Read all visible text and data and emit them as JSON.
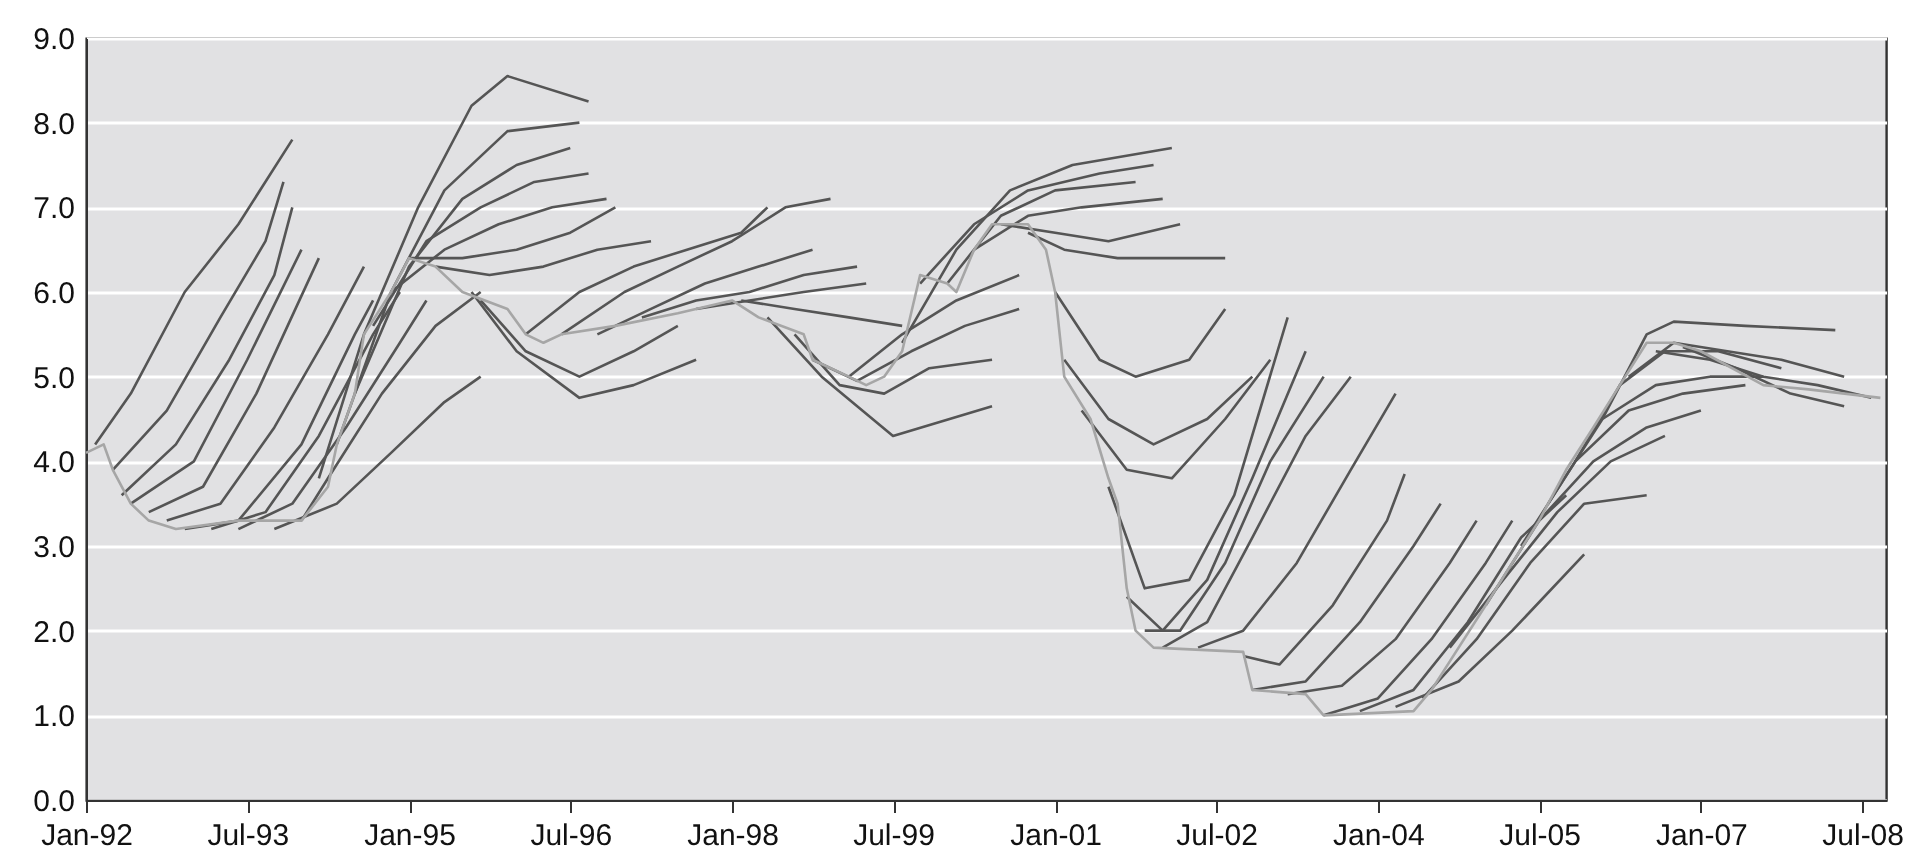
{
  "chart_data": {
    "type": "line",
    "xlim": [
      "1992-01",
      "2008-09-20"
    ],
    "xticks": [
      {
        "value": "1992-01",
        "label": "Jan-92"
      },
      {
        "value": "1993-07",
        "label": "Jul-93"
      },
      {
        "value": "1995-01",
        "label": "Jan-95"
      },
      {
        "value": "1996-07",
        "label": "Jul-96"
      },
      {
        "value": "1998-01",
        "label": "Jan-98"
      },
      {
        "value": "1999-07",
        "label": "Jul-99"
      },
      {
        "value": "2001-01",
        "label": "Jan-01"
      },
      {
        "value": "2002-07",
        "label": "Jul-02"
      },
      {
        "value": "2004-01",
        "label": "Jan-04"
      },
      {
        "value": "2005-07",
        "label": "Jul-05"
      },
      {
        "value": "2007-01",
        "label": "Jan-07"
      },
      {
        "value": "2008-07",
        "label": "Jul-08"
      }
    ],
    "ylim": [
      0,
      9
    ],
    "yticks": [
      {
        "value": 0,
        "label": "0.0"
      },
      {
        "value": 1,
        "label": "1.0"
      },
      {
        "value": 2,
        "label": "2.0"
      },
      {
        "value": 3,
        "label": "3.0"
      },
      {
        "value": 4,
        "label": "4.0"
      },
      {
        "value": 5,
        "label": "5.0"
      },
      {
        "value": 6,
        "label": "6.0"
      },
      {
        "value": 7,
        "label": "7.0"
      },
      {
        "value": 8,
        "label": "8.0"
      },
      {
        "value": 9,
        "label": "9.0"
      }
    ],
    "grid": "y",
    "series": [
      {
        "color": "#555555",
        "x": [
          "1992-02",
          "1992-06",
          "1992-12",
          "1993-06",
          "1993-12"
        ],
        "values": [
          4.2,
          4.8,
          6.0,
          6.8,
          7.8
        ]
      },
      {
        "color": "#555555",
        "x": [
          "1992-04",
          "1992-10",
          "1993-04",
          "1993-09",
          "1993-11"
        ],
        "values": [
          3.9,
          4.6,
          5.7,
          6.6,
          7.3
        ]
      },
      {
        "color": "#555555",
        "x": [
          "1992-05",
          "1992-11",
          "1993-05",
          "1993-10",
          "1993-12"
        ],
        "values": [
          3.6,
          4.2,
          5.2,
          6.2,
          7.0
        ]
      },
      {
        "color": "#555555",
        "x": [
          "1992-06",
          "1993-01",
          "1993-07",
          "1994-01"
        ],
        "values": [
          3.5,
          4.0,
          5.2,
          6.5
        ]
      },
      {
        "color": "#555555",
        "x": [
          "1992-08",
          "1993-02",
          "1993-08",
          "1994-03"
        ],
        "values": [
          3.4,
          3.7,
          4.8,
          6.4
        ]
      },
      {
        "color": "#555555",
        "x": [
          "1992-10",
          "1993-04",
          "1993-10",
          "1994-04",
          "1994-08"
        ],
        "values": [
          3.3,
          3.5,
          4.4,
          5.5,
          6.3
        ]
      },
      {
        "color": "#555555",
        "x": [
          "1992-12",
          "1993-06",
          "1994-01",
          "1994-07",
          "1994-09"
        ],
        "values": [
          3.2,
          3.3,
          4.2,
          5.5,
          5.9
        ]
      },
      {
        "color": "#555555",
        "x": [
          "1993-03",
          "1993-09",
          "1994-03",
          "1994-09",
          "1994-12"
        ],
        "values": [
          3.2,
          3.4,
          4.3,
          5.5,
          6.0
        ]
      },
      {
        "color": "#555555",
        "x": [
          "1993-06",
          "1993-12",
          "1994-06",
          "1994-12",
          "1995-03"
        ],
        "values": [
          3.2,
          3.5,
          4.4,
          5.4,
          5.9
        ]
      },
      {
        "color": "#555555",
        "x": [
          "1993-10",
          "1994-05",
          "1994-11",
          "1995-05",
          "1995-09"
        ],
        "values": [
          3.2,
          3.5,
          4.1,
          4.7,
          5.0
        ]
      },
      {
        "color": "#555555",
        "x": [
          "1994-01",
          "1994-04",
          "1994-10",
          "1995-04",
          "1995-09"
        ],
        "values": [
          3.3,
          3.8,
          4.8,
          5.6,
          6.0
        ]
      },
      {
        "color": "#555555",
        "x": [
          "1994-03",
          "1994-08",
          "1995-02",
          "1995-08",
          "1995-12",
          "1996-09"
        ],
        "values": [
          3.8,
          5.5,
          7.0,
          8.2,
          8.55,
          8.25
        ]
      },
      {
        "color": "#555555",
        "x": [
          "1994-05",
          "1994-11",
          "1995-05",
          "1995-12",
          "1996-08"
        ],
        "values": [
          4.2,
          6.0,
          7.2,
          7.9,
          8.0
        ]
      },
      {
        "color": "#555555",
        "x": [
          "1994-07",
          "1995-01",
          "1995-07",
          "1996-01",
          "1996-07"
        ],
        "values": [
          4.8,
          6.3,
          7.1,
          7.5,
          7.7
        ]
      },
      {
        "color": "#555555",
        "x": [
          "1994-09",
          "1995-03",
          "1995-09",
          "1996-03",
          "1996-09"
        ],
        "values": [
          5.6,
          6.6,
          7.0,
          7.3,
          7.4
        ]
      },
      {
        "color": "#555555",
        "x": [
          "1994-11",
          "1995-05",
          "1995-11",
          "1996-05",
          "1996-11"
        ],
        "values": [
          6.0,
          6.5,
          6.8,
          7.0,
          7.1
        ]
      },
      {
        "color": "#555555",
        "x": [
          "1995-01",
          "1995-07",
          "1996-01",
          "1996-07",
          "1996-12"
        ],
        "values": [
          6.4,
          6.4,
          6.5,
          6.7,
          7.0
        ]
      },
      {
        "color": "#555555",
        "x": [
          "1995-04",
          "1995-10",
          "1996-04",
          "1996-10",
          "1997-04"
        ],
        "values": [
          6.3,
          6.2,
          6.3,
          6.5,
          6.6
        ]
      },
      {
        "color": "#555555",
        "x": [
          "1995-08",
          "1996-01",
          "1996-08",
          "1997-02",
          "1997-09"
        ],
        "values": [
          6.0,
          5.3,
          4.75,
          4.9,
          5.2
        ]
      },
      {
        "color": "#555555",
        "x": [
          "1995-09",
          "1996-02",
          "1996-08",
          "1997-02",
          "1997-07"
        ],
        "values": [
          5.9,
          5.3,
          5.0,
          5.3,
          5.6
        ]
      },
      {
        "color": "#555555",
        "x": [
          "1996-02",
          "1996-08",
          "1997-02",
          "1997-08",
          "1998-02",
          "1998-05"
        ],
        "values": [
          5.5,
          6.0,
          6.3,
          6.5,
          6.7,
          7.0
        ]
      },
      {
        "color": "#555555",
        "x": [
          "1996-06",
          "1997-01",
          "1997-07",
          "1998-01",
          "1998-07",
          "1998-12"
        ],
        "values": [
          5.5,
          6.0,
          6.3,
          6.6,
          7.0,
          7.1
        ]
      },
      {
        "color": "#555555",
        "x": [
          "1996-10",
          "1997-04",
          "1997-10",
          "1998-04",
          "1998-10"
        ],
        "values": [
          5.5,
          5.8,
          6.1,
          6.3,
          6.5
        ]
      },
      {
        "color": "#555555",
        "x": [
          "1997-03",
          "1997-09",
          "1998-03",
          "1998-09",
          "1999-03"
        ],
        "values": [
          5.7,
          5.9,
          6.0,
          6.2,
          6.3
        ]
      },
      {
        "color": "#555555",
        "x": [
          "1997-09",
          "1998-03",
          "1998-09",
          "1999-04"
        ],
        "values": [
          5.8,
          5.9,
          6.0,
          6.1
        ]
      },
      {
        "color": "#555555",
        "x": [
          "1998-02",
          "1998-08",
          "1999-02",
          "1999-08"
        ],
        "values": [
          5.9,
          5.8,
          5.7,
          5.6
        ]
      },
      {
        "color": "#555555",
        "x": [
          "1998-05",
          "1998-11",
          "1999-07",
          "2000-06"
        ],
        "values": [
          5.7,
          5.0,
          4.3,
          4.65
        ]
      },
      {
        "color": "#555555",
        "x": [
          "1998-08",
          "1999-01",
          "1999-06",
          "1999-11",
          "2000-06"
        ],
        "values": [
          5.5,
          4.9,
          4.8,
          5.1,
          5.2
        ]
      },
      {
        "color": "#555555",
        "x": [
          "1998-10",
          "1999-03",
          "1999-09",
          "2000-03",
          "2000-09"
        ],
        "values": [
          5.2,
          4.95,
          5.3,
          5.6,
          5.8
        ]
      },
      {
        "color": "#555555",
        "x": [
          "1999-02",
          "1999-08",
          "2000-02",
          "2000-09"
        ],
        "values": [
          5.0,
          5.5,
          5.9,
          6.2
        ]
      },
      {
        "color": "#555555",
        "x": [
          "1999-08",
          "2000-02",
          "2000-08",
          "2001-03",
          "2002-02"
        ],
        "values": [
          5.4,
          6.5,
          7.2,
          7.5,
          7.7
        ]
      },
      {
        "color": "#555555",
        "x": [
          "1999-10",
          "2000-04",
          "2000-10",
          "2001-06",
          "2001-12"
        ],
        "values": [
          6.1,
          6.8,
          7.2,
          7.4,
          7.5
        ]
      },
      {
        "color": "#555555",
        "x": [
          "2000-01",
          "2000-07",
          "2001-01",
          "2001-10"
        ],
        "values": [
          6.1,
          6.9,
          7.2,
          7.3
        ]
      },
      {
        "color": "#555555",
        "x": [
          "2000-04",
          "2000-10",
          "2001-04",
          "2002-01"
        ],
        "values": [
          6.5,
          6.9,
          7.0,
          7.1
        ]
      },
      {
        "color": "#555555",
        "x": [
          "2000-07",
          "2001-01",
          "2001-07",
          "2002-03"
        ],
        "values": [
          6.8,
          6.7,
          6.6,
          6.8
        ]
      },
      {
        "color": "#555555",
        "x": [
          "2000-10",
          "2001-02",
          "2001-08",
          "2002-08"
        ],
        "values": [
          6.7,
          6.5,
          6.4,
          6.4
        ]
      },
      {
        "color": "#555555",
        "x": [
          "2001-01",
          "2001-06",
          "2001-10",
          "2002-04",
          "2002-08"
        ],
        "values": [
          6.0,
          5.2,
          5.0,
          5.2,
          5.8
        ]
      },
      {
        "color": "#555555",
        "x": [
          "2001-02",
          "2001-07",
          "2001-12",
          "2002-06",
          "2002-11"
        ],
        "values": [
          5.2,
          4.5,
          4.2,
          4.5,
          5.0
        ]
      },
      {
        "color": "#555555",
        "x": [
          "2001-04",
          "2001-09",
          "2002-02",
          "2002-08",
          "2003-01"
        ],
        "values": [
          4.6,
          3.9,
          3.8,
          4.5,
          5.2
        ]
      },
      {
        "color": "#555555",
        "x": [
          "2001-07",
          "2001-11",
          "2002-04",
          "2002-09",
          "2003-03"
        ],
        "values": [
          3.7,
          2.5,
          2.6,
          3.6,
          5.7
        ]
      },
      {
        "color": "#555555",
        "x": [
          "2001-09",
          "2002-01",
          "2002-06",
          "2002-11",
          "2003-05"
        ],
        "values": [
          2.4,
          2.0,
          2.6,
          3.8,
          5.3
        ]
      },
      {
        "color": "#555555",
        "x": [
          "2001-11",
          "2002-03",
          "2002-08",
          "2003-01",
          "2003-07"
        ],
        "values": [
          2.0,
          2.0,
          2.8,
          4.0,
          5.0
        ]
      },
      {
        "color": "#555555",
        "x": [
          "2002-01",
          "2002-06",
          "2002-11",
          "2003-05",
          "2003-10"
        ],
        "values": [
          1.8,
          2.1,
          3.1,
          4.3,
          5.0
        ]
      },
      {
        "color": "#555555",
        "x": [
          "2002-05",
          "2002-10",
          "2003-04",
          "2003-10",
          "2004-03"
        ],
        "values": [
          1.8,
          2.0,
          2.8,
          3.9,
          4.8
        ]
      },
      {
        "color": "#555555",
        "x": [
          "2002-10",
          "2003-02",
          "2003-08",
          "2004-02",
          "2004-04"
        ],
        "values": [
          1.7,
          1.6,
          2.3,
          3.3,
          3.85
        ]
      },
      {
        "color": "#555555",
        "x": [
          "2002-11",
          "2003-05",
          "2003-11",
          "2004-05",
          "2004-08"
        ],
        "values": [
          1.3,
          1.4,
          2.1,
          3.0,
          3.5
        ]
      },
      {
        "color": "#555555",
        "x": [
          "2003-03",
          "2003-09",
          "2004-03",
          "2004-09",
          "2004-12"
        ],
        "values": [
          1.25,
          1.35,
          1.9,
          2.8,
          3.3
        ]
      },
      {
        "color": "#555555",
        "x": [
          "2003-07",
          "2004-01",
          "2004-07",
          "2005-01",
          "2005-04"
        ],
        "values": [
          1.0,
          1.2,
          1.9,
          2.8,
          3.3
        ]
      },
      {
        "color": "#555555",
        "x": [
          "2003-11",
          "2004-05",
          "2004-11",
          "2005-05",
          "2005-10"
        ],
        "values": [
          1.05,
          1.3,
          2.1,
          3.1,
          3.6
        ]
      },
      {
        "color": "#555555",
        "x": [
          "2004-03",
          "2004-10",
          "2005-04",
          "2005-12"
        ],
        "values": [
          1.1,
          1.4,
          2.0,
          2.9
        ]
      },
      {
        "color": "#555555",
        "x": [
          "2004-06",
          "2004-12",
          "2005-06",
          "2005-12",
          "2006-07"
        ],
        "values": [
          1.2,
          1.9,
          2.8,
          3.5,
          3.6
        ]
      },
      {
        "color": "#555555",
        "x": [
          "2004-09",
          "2005-03",
          "2005-09",
          "2006-03",
          "2006-09"
        ],
        "values": [
          1.8,
          2.6,
          3.4,
          4.0,
          4.3
        ]
      },
      {
        "color": "#555555",
        "x": [
          "2005-01",
          "2005-07",
          "2006-01",
          "2006-07",
          "2007-01"
        ],
        "values": [
          2.3,
          3.3,
          4.0,
          4.4,
          4.6
        ]
      },
      {
        "color": "#555555",
        "x": [
          "2005-05",
          "2005-11",
          "2006-05",
          "2006-11",
          "2007-06"
        ],
        "values": [
          3.0,
          4.0,
          4.6,
          4.8,
          4.9
        ]
      },
      {
        "color": "#555555",
        "x": [
          "2005-08",
          "2006-02",
          "2006-08",
          "2007-02",
          "2007-08"
        ],
        "values": [
          3.5,
          4.5,
          4.9,
          5.0,
          5.0
        ]
      },
      {
        "color": "#555555",
        "x": [
          "2005-11",
          "2006-04",
          "2006-09",
          "2007-03",
          "2007-10"
        ],
        "values": [
          4.0,
          4.9,
          5.3,
          5.3,
          5.1
        ]
      },
      {
        "color": "#555555",
        "x": [
          "2006-02",
          "2006-07",
          "2006-10",
          "2007-06",
          "2008-04"
        ],
        "values": [
          4.5,
          5.5,
          5.65,
          5.6,
          5.55
        ]
      },
      {
        "color": "#555555",
        "x": [
          "2006-05",
          "2006-10",
          "2007-04",
          "2007-10",
          "2008-05"
        ],
        "values": [
          5.0,
          5.4,
          5.3,
          5.2,
          5.0
        ]
      },
      {
        "color": "#555555",
        "x": [
          "2006-08",
          "2007-02",
          "2007-08",
          "2008-02",
          "2008-08"
        ],
        "values": [
          5.3,
          5.2,
          5.0,
          4.9,
          4.75
        ]
      },
      {
        "color": "#555555",
        "x": [
          "2006-11",
          "2007-05",
          "2007-11",
          "2008-05"
        ],
        "values": [
          5.35,
          5.1,
          4.8,
          4.65
        ]
      },
      {
        "color": "#a6a6a6",
        "x": [
          "1992-01",
          "1992-03",
          "1992-04",
          "1992-06",
          "1992-08",
          "1992-11",
          "1993-06",
          "1994-01",
          "1994-04",
          "1994-05",
          "1994-07",
          "1994-08",
          "1994-11",
          "1995-01",
          "1995-04",
          "1995-07",
          "1995-12",
          "1996-02",
          "1996-04",
          "1996-06",
          "1996-12",
          "1997-07",
          "1998-01",
          "1998-04",
          "1998-09",
          "1998-10",
          "1999-02",
          "1999-04",
          "1999-06",
          "1999-08",
          "1999-10",
          "2000-01",
          "2000-02",
          "2000-04",
          "2000-06",
          "2000-10",
          "2000-12",
          "2001-01",
          "2001-02",
          "2001-05",
          "2001-07",
          "2001-08",
          "2001-09",
          "2001-10",
          "2001-12",
          "2002-10",
          "2002-11",
          "2003-05",
          "2003-07",
          "2004-05",
          "2004-07",
          "2004-10",
          "2005-01",
          "2005-04",
          "2005-07",
          "2005-10",
          "2006-01",
          "2006-04",
          "2006-07",
          "2006-10",
          "2007-01",
          "2007-08",
          "2008-01",
          "2008-09"
        ],
        "values": [
          4.1,
          4.2,
          3.9,
          3.5,
          3.3,
          3.2,
          3.3,
          3.3,
          3.7,
          4.2,
          4.8,
          5.5,
          6.0,
          6.4,
          6.3,
          6.0,
          5.8,
          5.5,
          5.4,
          5.5,
          5.6,
          5.75,
          5.9,
          5.7,
          5.5,
          5.2,
          5.0,
          4.9,
          5.0,
          5.3,
          6.2,
          6.1,
          6.0,
          6.5,
          6.8,
          6.8,
          6.5,
          6.0,
          5.0,
          4.5,
          3.8,
          3.5,
          2.5,
          2.0,
          1.8,
          1.75,
          1.3,
          1.25,
          1.0,
          1.05,
          1.3,
          1.8,
          2.3,
          2.8,
          3.3,
          3.9,
          4.4,
          4.9,
          5.4,
          5.4,
          5.3,
          4.9,
          4.85,
          4.75
        ]
      }
    ]
  }
}
